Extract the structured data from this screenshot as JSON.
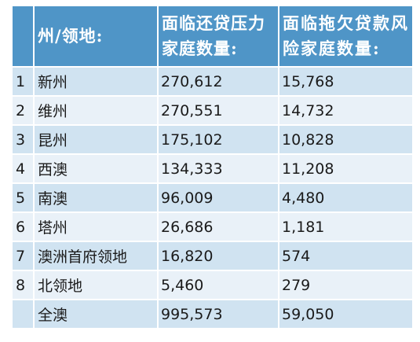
{
  "table": {
    "headers": {
      "index": "",
      "state": "州/领地:",
      "mortgage_stress": "面临还贷压力家庭数量:",
      "default_risk": "面临拖欠贷款风险家庭数量:"
    },
    "rows": [
      {
        "index": "1",
        "state": "新州",
        "mortgage_stress": "270,612",
        "default_risk": "15,768"
      },
      {
        "index": "2",
        "state": "维州",
        "mortgage_stress": "270,551",
        "default_risk": "14,732"
      },
      {
        "index": "3",
        "state": "昆州",
        "mortgage_stress": "175,102",
        "default_risk": "10,828"
      },
      {
        "index": "4",
        "state": "西澳",
        "mortgage_stress": "134,333",
        "default_risk": "11,208"
      },
      {
        "index": "5",
        "state": "南澳",
        "mortgage_stress": "96,009",
        "default_risk": "4,480"
      },
      {
        "index": "6",
        "state": "塔州",
        "mortgage_stress": "26,686",
        "default_risk": "1,181"
      },
      {
        "index": "7",
        "state": "澳洲首府领地",
        "mortgage_stress": "16,820",
        "default_risk": "574"
      },
      {
        "index": "8",
        "state": "北领地",
        "mortgage_stress": "5,460",
        "default_risk": "279"
      },
      {
        "index": "",
        "state": "全澳",
        "mortgage_stress": "995,573",
        "default_risk": "59,050"
      }
    ]
  },
  "colors": {
    "header_bg": "#4f95c7",
    "row_odd_bg": "#d0e3f1",
    "row_even_bg": "#e9f1f8"
  }
}
